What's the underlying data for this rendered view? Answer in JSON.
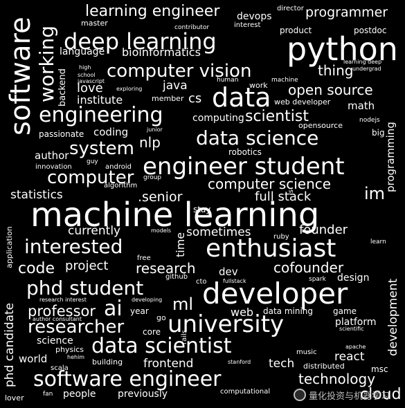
{
  "words": {
    "software_engineer": "software engineer",
    "machine_learning": "machine learning",
    "developer": "developer",
    "python": "python",
    "deep_learning": "deep learning",
    "data_science": "data science",
    "engineer_student": "engineer student",
    "enthusiast": "enthusiast",
    "university": "university",
    "data_scientist": "data scientist",
    "computer_vision": "computer vision",
    "engineering": "engineering",
    "phd_student": "phd student",
    "data": "data",
    "software": "software",
    "working": "working",
    "interested": "interested",
    "researcher": "researcher",
    "computer_science": "computer science",
    "computer": "computer",
    "system": "system",
    "professor": "professor",
    "open_source": "open source",
    "scientist": "scientist",
    "learning_engineer": "learning engineer",
    "programmer": "programmer",
    "technology": "technology",
    "ai": "ai",
    "ml": "ml",
    "nlp": "nlp",
    "im": "im",
    "code": "code",
    "project": "project",
    "research": "research",
    "cofounder": "cofounder",
    "statistics": "statistics",
    "senior": ".senior",
    "full_stack": "full stack",
    "react": "react",
    "frontend": "frontend",
    "thing": "thing",
    "love": "love",
    "institute": "institute",
    "java": "java",
    "cs": "cs",
    "math": "math",
    "coding": "coding",
    "author": "author",
    "currently": "currently",
    "sometimes": "sometimes",
    "founder": "founder",
    "dev": "dev",
    "design": "design",
    "web": "web",
    "data_mining": "data mining",
    "game": "game",
    "platform": "platform",
    "science": "science",
    "world": "world",
    "tech": "tech",
    "cloud": "cloud",
    "people": "people",
    "previously": "previously",
    "lover": "lover",
    "fan": "fan",
    "scala": "scala",
    "msc": "msc",
    "music": "music",
    "distributed": "distributed",
    "physics": "physics",
    "building": "building",
    "bioinformatics": "bioinformatics",
    "language": "language",
    "devops": "devops",
    "master": "master",
    "contributor": "contributor",
    "interest": "interest",
    "director": "director",
    "product": "product",
    "postdoc": "postdoc",
    "high": "high",
    "school": "school",
    "javascript": "javascript",
    "human": "human",
    "work": "work",
    "machine": "machine",
    "learning_deep": "learning deep",
    "undergrad": "undergrad",
    "exploring": "exploring",
    "member": "member",
    "web_developer": "web developer",
    "computing": "computing",
    "nodejs": "nodejs",
    "big": "big",
    "passionate": "passionate",
    "junior": "junior",
    "opensource": "opensource",
    "robotics": "robotics",
    "innovation": "innovation",
    "guy": "guy",
    "android": "android",
    "group": "group",
    "algorithm": "algorithm",
    "stay": "stay",
    "models": "models",
    "ruby": "ruby",
    "learn": "learn",
    "free": "free",
    "github": "github",
    "cto": "cto",
    "fullstack": "fullstack",
    "spark": "spark",
    "developing": "developing",
    "research_interest": "research interest",
    "author_consultant": "author consultant",
    "year": "year",
    "go": "go",
    "core": "core",
    "scientific": "scientific",
    "apache": "apache",
    "stanford": "stanford",
    "computational": "computational",
    "hehim": "hehim",
    "application": "application",
    "phd_candidate": "phd candidate",
    "development": "development",
    "programming": "programming",
    "backend": "backend",
    "time": "time",
    "js": "js",
    "rails": "rails"
  },
  "watermark": {
    "text": "量化投资与机器学习"
  }
}
